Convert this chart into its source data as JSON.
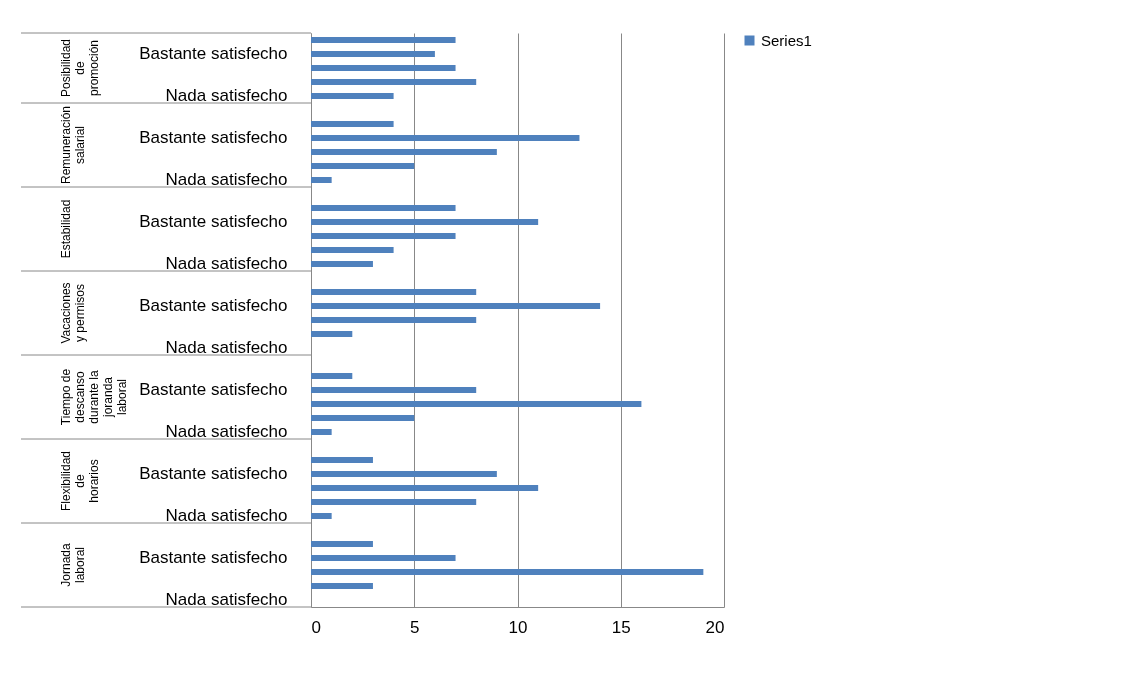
{
  "chart_data": {
    "type": "bar",
    "orientation": "horizontal",
    "categories": [
      null,
      "Bastante satisfecho",
      null,
      null,
      "Nada satisfecho",
      null,
      null,
      "Bastante satisfecho",
      null,
      null,
      "Nada satisfecho",
      null,
      null,
      "Bastante satisfecho",
      null,
      null,
      "Nada satisfecho",
      null,
      null,
      "Bastante satisfecho",
      null,
      null,
      "Nada satisfecho",
      null,
      null,
      "Bastante satisfecho",
      null,
      null,
      "Nada satisfecho",
      null,
      null,
      "Bastante satisfecho",
      null,
      null,
      "Nada satisfecho",
      null,
      null,
      "Bastante satisfecho",
      null,
      null,
      "Nada satisfecho"
    ],
    "series": [
      {
        "name": "Series1",
        "color": "#4f81bd",
        "values": [
          7,
          6,
          7,
          8,
          4,
          null,
          4,
          13,
          9,
          5,
          1,
          null,
          7,
          11,
          7,
          4,
          3,
          null,
          8,
          14,
          8,
          2,
          null,
          null,
          2,
          8,
          16,
          5,
          1,
          null,
          3,
          9,
          11,
          8,
          1,
          null,
          3,
          7,
          19,
          3,
          null
        ]
      }
    ],
    "annotations": [
      "Posibilidad de promoción",
      "Remuneración salarial",
      "Estabilidad",
      "Vacaciones y permisos",
      "Tiempo de descanso durante la joranda laboral",
      "Flexibilidad de horarios",
      "Jornada laboral"
    ],
    "xlim": [
      0,
      20
    ],
    "xticks": [
      0,
      5,
      10,
      15,
      20
    ],
    "grid": "x",
    "legend": "right"
  }
}
